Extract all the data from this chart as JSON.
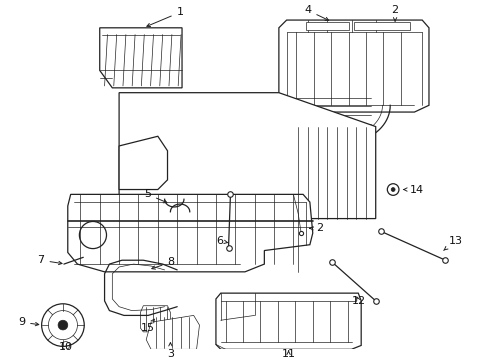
{
  "bg_color": "#ffffff",
  "line_color": "#222222",
  "text_color": "#111111",
  "figsize": [
    4.89,
    3.6
  ],
  "dpi": 100,
  "lw_main": 0.9,
  "lw_thin": 0.5,
  "fs": 8.0
}
